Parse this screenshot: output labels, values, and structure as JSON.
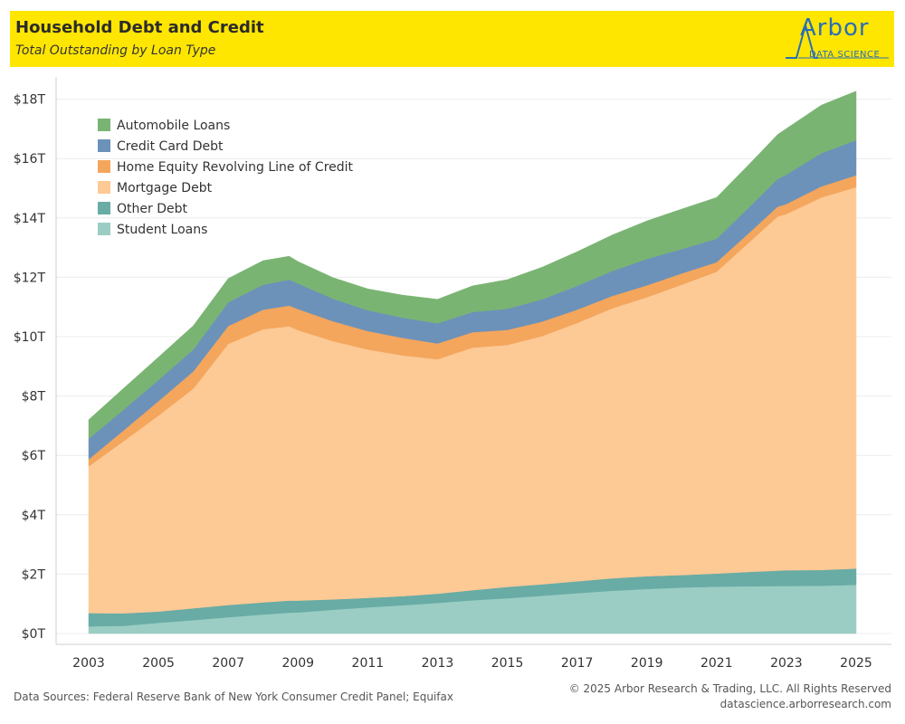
{
  "header": {
    "title": "Household Debt and Credit",
    "subtitle": "Total Outstanding by Loan Type",
    "logo_text": "Arbor",
    "logo_subtext": "DATA SCIENCE"
  },
  "footer": {
    "sources": "Data Sources: Federal Reserve Bank of New York Consumer Credit Panel; Equifax",
    "copyright": "© 2025 Arbor Research & Trading, LLC. All Rights Reserved",
    "website": "datascience.arborresearch.com"
  },
  "colors": {
    "banner": "#ffe600",
    "Student Loans": "#9bcdc4",
    "Other Debt": "#68aca5",
    "Mortgage Debt": "#fdc995",
    "Home Equity Revolving Line of Credit": "#f4a65c",
    "Credit Card Debt": "#6c92b9",
    "Automobile Loans": "#7ab473"
  },
  "chart_data": {
    "type": "area",
    "stacked": true,
    "x_unit": "year",
    "ylim": [
      0,
      18.7
    ],
    "xlim": [
      2002.5,
      2025.8
    ],
    "y_tick_labels": [
      "$0T",
      "$2T",
      "$4T",
      "$6T",
      "$8T",
      "$10T",
      "$12T",
      "$14T",
      "$16T",
      "$18T"
    ],
    "y_tick_values": [
      0,
      2,
      4,
      6,
      8,
      10,
      12,
      14,
      16,
      18
    ],
    "x_tick_labels": [
      "2003",
      "2005",
      "2007",
      "2009",
      "2011",
      "2013",
      "2015",
      "2017",
      "2019",
      "2021",
      "2023",
      "2025"
    ],
    "x_tick_values": [
      2003,
      2005,
      2007,
      2009,
      2011,
      2013,
      2015,
      2017,
      2019,
      2021,
      2023,
      2025
    ],
    "grid": "horizontal",
    "legend_position": "top-left",
    "legend": [
      "Automobile Loans",
      "Credit Card Debt",
      "Home Equity Revolving Line of Credit",
      "Mortgage Debt",
      "Other Debt",
      "Student Loans"
    ],
    "x": [
      2003,
      2004,
      2005,
      2006,
      2007,
      2008,
      2008.75,
      2009,
      2010,
      2011,
      2012,
      2013,
      2014,
      2015,
      2016,
      2017,
      2018,
      2019,
      2020,
      2021,
      2022,
      2022.75,
      2023,
      2024,
      2025
    ],
    "series": [
      {
        "name": "Student Loans",
        "values": [
          0.24,
          0.26,
          0.36,
          0.45,
          0.55,
          0.64,
          0.7,
          0.71,
          0.8,
          0.88,
          0.95,
          1.03,
          1.12,
          1.19,
          1.27,
          1.36,
          1.44,
          1.5,
          1.55,
          1.58,
          1.59,
          1.6,
          1.6,
          1.61,
          1.64
        ]
      },
      {
        "name": "Other Debt",
        "values": [
          0.45,
          0.42,
          0.38,
          0.4,
          0.41,
          0.41,
          0.41,
          0.4,
          0.35,
          0.32,
          0.31,
          0.31,
          0.34,
          0.38,
          0.39,
          0.4,
          0.42,
          0.43,
          0.42,
          0.44,
          0.49,
          0.52,
          0.53,
          0.53,
          0.55
        ]
      },
      {
        "name": "Mortgage Debt",
        "values": [
          4.94,
          5.8,
          6.6,
          7.4,
          8.8,
          9.2,
          9.24,
          9.11,
          8.7,
          8.37,
          8.11,
          7.9,
          8.17,
          8.15,
          8.36,
          8.7,
          9.09,
          9.4,
          9.78,
          10.17,
          11.17,
          11.93,
          12.0,
          12.55,
          12.85
        ]
      },
      {
        "name": "Home Equity Revolving Line of Credit",
        "values": [
          0.24,
          0.36,
          0.49,
          0.58,
          0.6,
          0.66,
          0.7,
          0.71,
          0.67,
          0.62,
          0.59,
          0.53,
          0.52,
          0.51,
          0.49,
          0.45,
          0.42,
          0.4,
          0.38,
          0.32,
          0.32,
          0.33,
          0.34,
          0.37,
          0.4
        ]
      },
      {
        "name": "Credit Card Debt",
        "values": [
          0.69,
          0.7,
          0.71,
          0.74,
          0.8,
          0.84,
          0.87,
          0.86,
          0.76,
          0.7,
          0.68,
          0.68,
          0.68,
          0.71,
          0.75,
          0.8,
          0.84,
          0.89,
          0.82,
          0.79,
          0.87,
          0.93,
          0.99,
          1.12,
          1.18
        ]
      },
      {
        "name": "Automobile Loans",
        "values": [
          0.64,
          0.72,
          0.77,
          0.8,
          0.8,
          0.81,
          0.79,
          0.74,
          0.71,
          0.72,
          0.76,
          0.81,
          0.88,
          0.98,
          1.08,
          1.15,
          1.21,
          1.28,
          1.35,
          1.39,
          1.45,
          1.5,
          1.55,
          1.62,
          1.65
        ]
      }
    ]
  }
}
